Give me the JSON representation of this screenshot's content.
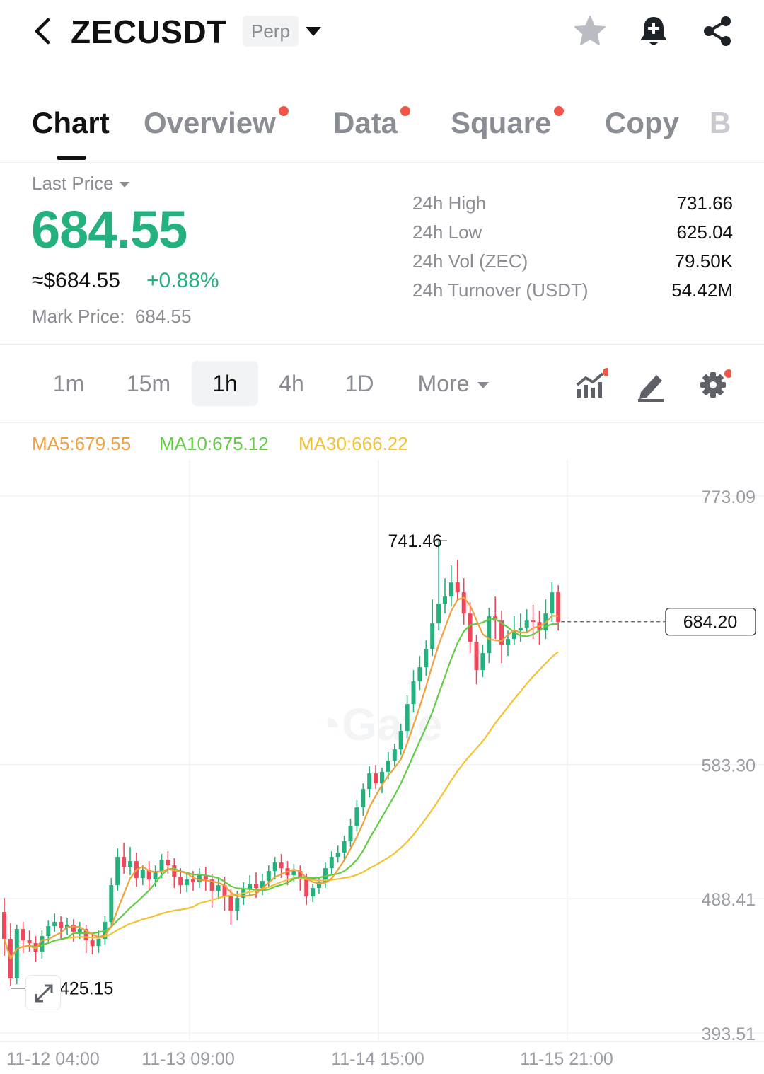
{
  "header": {
    "symbol": "ZECUSDT",
    "contract_type": "Perp",
    "back_icon": "chevron-left-icon",
    "icons": [
      "star-icon",
      "bell-plus-icon",
      "share-icon"
    ]
  },
  "tabs": [
    {
      "label": "Chart",
      "active": true,
      "dot": false
    },
    {
      "label": "Overview",
      "active": false,
      "dot": true
    },
    {
      "label": "Data",
      "active": false,
      "dot": true
    },
    {
      "label": "Square",
      "active": false,
      "dot": true
    },
    {
      "label": "Copy",
      "active": false,
      "dot": false
    },
    {
      "label": "B",
      "active": false,
      "dot": false
    }
  ],
  "price": {
    "label": "Last Price",
    "last": "684.55",
    "usd": "≈$684.55",
    "change": "+0.88%",
    "mark_label": "Mark Price:",
    "mark_value": "684.55"
  },
  "stats": [
    {
      "label": "24h High",
      "value": "731.66"
    },
    {
      "label": "24h Low",
      "value": "625.04"
    },
    {
      "label": "24h Vol (ZEC)",
      "value": "79.50K"
    },
    {
      "label": "24h Turnover (USDT)",
      "value": "54.42M"
    }
  ],
  "timeframes": [
    {
      "label": "1m",
      "active": false
    },
    {
      "label": "15m",
      "active": false
    },
    {
      "label": "1h",
      "active": true
    },
    {
      "label": "4h",
      "active": false
    },
    {
      "label": "1D",
      "active": false
    }
  ],
  "more_label": "More",
  "toolbar_icons": [
    "indicators-icon",
    "draw-icon",
    "gear-icon"
  ],
  "ma": [
    {
      "label": "MA5:679.55",
      "color": "#f0a03c"
    },
    {
      "label": "MA10:675.12",
      "color": "#62cc46"
    },
    {
      "label": "MA30:666.22",
      "color": "#f2c233"
    }
  ],
  "colors": {
    "up": "#25b17e",
    "down": "#f0475b",
    "accent_dot": "#f0574b"
  },
  "watermark": "Gate",
  "chart_data": {
    "type": "candlestick",
    "interval": "1h",
    "y_ticks": [
      773.09,
      583.3,
      488.41,
      393.51
    ],
    "ylim": [
      393.51,
      773.09
    ],
    "x_ticks": [
      "11-12 04:00",
      "11-13 09:00",
      "11-14 15:00",
      "11-15 21:00"
    ],
    "high_label": "741.46",
    "low_label": "425.15",
    "current_price": "684.20",
    "candles": [
      [
        479,
        460,
        489,
        448
      ],
      [
        460,
        432,
        471,
        427
      ],
      [
        432,
        467,
        470,
        428
      ],
      [
        467,
        459,
        472,
        450
      ],
      [
        459,
        457,
        466,
        451
      ],
      [
        457,
        451,
        462,
        444
      ],
      [
        451,
        462,
        466,
        446
      ],
      [
        462,
        469,
        473,
        458
      ],
      [
        469,
        472,
        478,
        465
      ],
      [
        472,
        468,
        476,
        460
      ],
      [
        468,
        470,
        475,
        463
      ],
      [
        470,
        465,
        474,
        458
      ],
      [
        465,
        467,
        472,
        460
      ],
      [
        467,
        459,
        470,
        450
      ],
      [
        459,
        455,
        464,
        449
      ],
      [
        455,
        460,
        466,
        450
      ],
      [
        460,
        472,
        476,
        456
      ],
      [
        472,
        498,
        503,
        468
      ],
      [
        498,
        518,
        524,
        494
      ],
      [
        518,
        511,
        528,
        506
      ],
      [
        511,
        515,
        525,
        505
      ],
      [
        515,
        503,
        521,
        497
      ],
      [
        503,
        509,
        512,
        498
      ],
      [
        509,
        502,
        515,
        495
      ],
      [
        502,
        508,
        512,
        497
      ],
      [
        508,
        516,
        520,
        503
      ],
      [
        516,
        512,
        522,
        506
      ],
      [
        512,
        504,
        517,
        496
      ],
      [
        504,
        498,
        510,
        492
      ],
      [
        498,
        502,
        506,
        493
      ],
      [
        502,
        500,
        508,
        494
      ],
      [
        500,
        505,
        510,
        496
      ],
      [
        505,
        502,
        511,
        494
      ],
      [
        502,
        494,
        506,
        482
      ],
      [
        494,
        498,
        503,
        488
      ],
      [
        498,
        490,
        504,
        480
      ],
      [
        490,
        480,
        495,
        470
      ],
      [
        480,
        489,
        494,
        473
      ],
      [
        489,
        495,
        500,
        484
      ],
      [
        495,
        499,
        505,
        490
      ],
      [
        499,
        496,
        507,
        489
      ],
      [
        496,
        501,
        506,
        491
      ],
      [
        501,
        508,
        512,
        496
      ],
      [
        508,
        514,
        518,
        502
      ],
      [
        514,
        510,
        520,
        503
      ],
      [
        510,
        505,
        515,
        498
      ],
      [
        505,
        508,
        513,
        500
      ],
      [
        508,
        502,
        512,
        494
      ],
      [
        502,
        490,
        506,
        484
      ],
      [
        490,
        496,
        499,
        486
      ],
      [
        496,
        500,
        504,
        492
      ],
      [
        500,
        510,
        514,
        496
      ],
      [
        510,
        518,
        522,
        506
      ],
      [
        518,
        521,
        526,
        514
      ],
      [
        521,
        529,
        533,
        516
      ],
      [
        529,
        540,
        545,
        525
      ],
      [
        540,
        553,
        558,
        536
      ],
      [
        553,
        566,
        570,
        547
      ],
      [
        566,
        577,
        582,
        560
      ],
      [
        577,
        570,
        583,
        566
      ],
      [
        570,
        578,
        581,
        563
      ],
      [
        578,
        586,
        592,
        573
      ],
      [
        586,
        594,
        598,
        582
      ],
      [
        594,
        607,
        612,
        590
      ],
      [
        607,
        626,
        632,
        602
      ],
      [
        626,
        642,
        650,
        620
      ],
      [
        642,
        652,
        660,
        636
      ],
      [
        652,
        665,
        671,
        646
      ],
      [
        665,
        683,
        700,
        660
      ],
      [
        683,
        697,
        741,
        678
      ],
      [
        697,
        702,
        715,
        690
      ],
      [
        702,
        712,
        724,
        695
      ],
      [
        712,
        705,
        728,
        700
      ],
      [
        705,
        690,
        715,
        682
      ],
      [
        690,
        670,
        698,
        662
      ],
      [
        670,
        650,
        675,
        640
      ],
      [
        650,
        662,
        668,
        645
      ],
      [
        662,
        688,
        694,
        655
      ],
      [
        688,
        685,
        702,
        672
      ],
      [
        685,
        668,
        692,
        655
      ],
      [
        668,
        672,
        678,
        660
      ],
      [
        672,
        678,
        688,
        668
      ],
      [
        678,
        680,
        690,
        670
      ],
      [
        680,
        685,
        693,
        676
      ],
      [
        685,
        684,
        696,
        672
      ],
      [
        684,
        678,
        692,
        668
      ],
      [
        678,
        690,
        700,
        672
      ],
      [
        690,
        705,
        712,
        684
      ],
      [
        705,
        684,
        710,
        678
      ]
    ]
  }
}
